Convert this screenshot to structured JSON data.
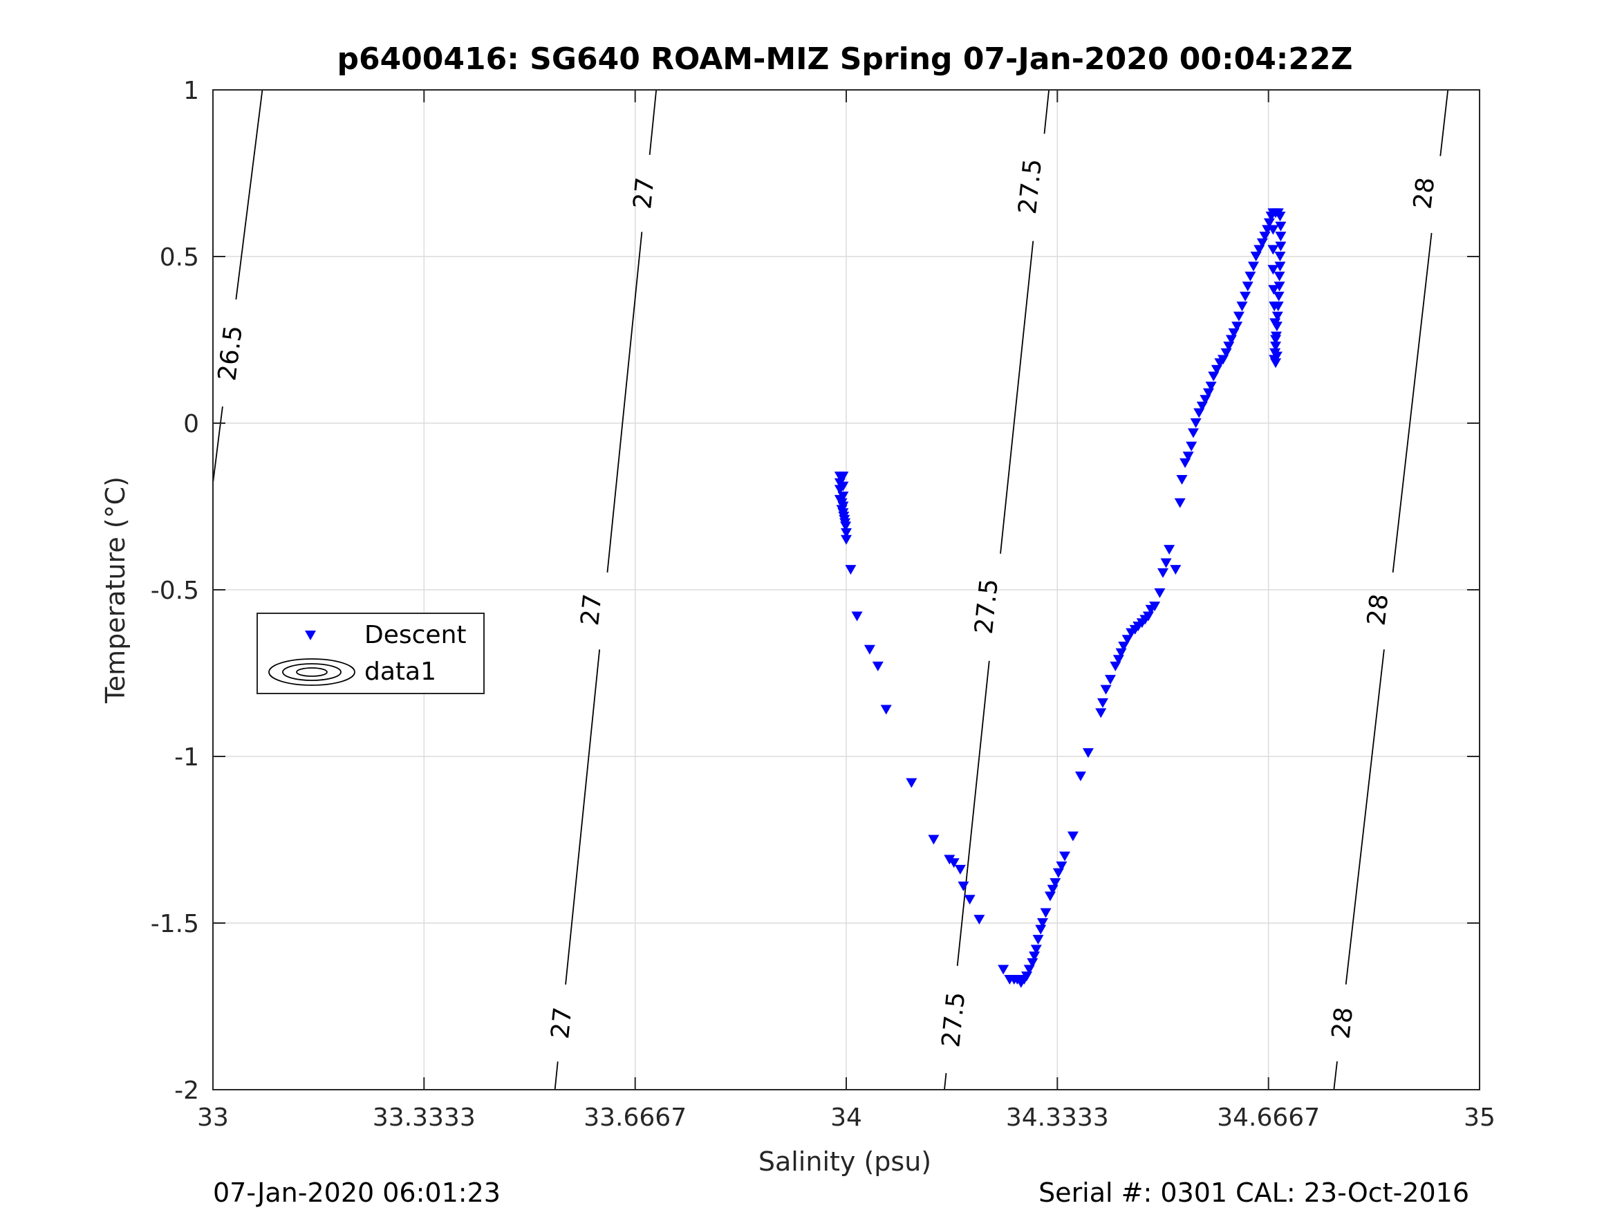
{
  "chart_data": {
    "type": "scatter",
    "title": "p6400416: SG640 ROAM-MIZ Spring 07-Jan-2020 00:04:22Z",
    "xlabel": "Salinity (psu)",
    "ylabel": "Temperature (°C)",
    "xlim": [
      33,
      35
    ],
    "ylim": [
      -2,
      1
    ],
    "x_ticks": [
      33,
      33.3333,
      33.6667,
      34,
      34.3333,
      34.6667,
      35
    ],
    "x_tick_labels": [
      "33",
      "33.3333",
      "33.6667",
      "34",
      "34.3333",
      "34.6667",
      "35"
    ],
    "y_ticks": [
      -2,
      -1.5,
      -1,
      -0.5,
      0,
      0.5,
      1
    ],
    "y_tick_labels": [
      "-2",
      "-1.5",
      "-1",
      "-0.5",
      "0",
      "0.5",
      "1"
    ],
    "grid": true,
    "legend": {
      "placement": "middle-left",
      "entries": [
        "Descent",
        "data1"
      ]
    },
    "series": [
      {
        "name": "Descent",
        "color": "#0000ff",
        "marker": "triangle-down",
        "points": [
          [
            33.99,
            -0.16
          ],
          [
            33.995,
            -0.16
          ],
          [
            33.99,
            -0.18
          ],
          [
            33.995,
            -0.19
          ],
          [
            33.99,
            -0.2
          ],
          [
            33.995,
            -0.22
          ],
          [
            33.99,
            -0.23
          ],
          [
            33.993,
            -0.24
          ],
          [
            33.995,
            -0.25
          ],
          [
            33.993,
            -0.26
          ],
          [
            33.995,
            -0.27
          ],
          [
            33.996,
            -0.28
          ],
          [
            33.997,
            -0.29
          ],
          [
            33.998,
            -0.3
          ],
          [
            33.999,
            -0.31
          ],
          [
            34.0,
            -0.33
          ],
          [
            34.0,
            -0.35
          ],
          [
            34.007,
            -0.44
          ],
          [
            34.017,
            -0.58
          ],
          [
            34.037,
            -0.68
          ],
          [
            34.05,
            -0.73
          ],
          [
            34.063,
            -0.86
          ],
          [
            34.103,
            -1.08
          ],
          [
            34.138,
            -1.25
          ],
          [
            34.163,
            -1.31
          ],
          [
            34.17,
            -1.32
          ],
          [
            34.18,
            -1.34
          ],
          [
            34.185,
            -1.39
          ],
          [
            34.195,
            -1.43
          ],
          [
            34.21,
            -1.49
          ],
          [
            34.248,
            -1.64
          ],
          [
            34.258,
            -1.67
          ],
          [
            34.265,
            -1.67
          ],
          [
            34.27,
            -1.67
          ],
          [
            34.276,
            -1.68
          ],
          [
            34.281,
            -1.67
          ],
          [
            34.285,
            -1.66
          ],
          [
            34.289,
            -1.64
          ],
          [
            34.294,
            -1.62
          ],
          [
            34.297,
            -1.6
          ],
          [
            34.3,
            -1.58
          ],
          [
            34.303,
            -1.55
          ],
          [
            34.307,
            -1.52
          ],
          [
            34.31,
            -1.5
          ],
          [
            34.315,
            -1.47
          ],
          [
            34.322,
            -1.42
          ],
          [
            34.326,
            -1.4
          ],
          [
            34.33,
            -1.38
          ],
          [
            34.335,
            -1.35
          ],
          [
            34.34,
            -1.33
          ],
          [
            34.345,
            -1.3
          ],
          [
            34.358,
            -1.24
          ],
          [
            34.37,
            -1.06
          ],
          [
            34.382,
            -0.99
          ],
          [
            34.402,
            -0.87
          ],
          [
            34.405,
            -0.84
          ],
          [
            34.41,
            -0.8
          ],
          [
            34.417,
            -0.77
          ],
          [
            34.425,
            -0.73
          ],
          [
            34.43,
            -0.71
          ],
          [
            34.434,
            -0.69
          ],
          [
            34.438,
            -0.67
          ],
          [
            34.444,
            -0.65
          ],
          [
            34.45,
            -0.63
          ],
          [
            34.456,
            -0.62
          ],
          [
            34.461,
            -0.61
          ],
          [
            34.467,
            -0.6
          ],
          [
            34.472,
            -0.59
          ],
          [
            34.477,
            -0.58
          ],
          [
            34.481,
            -0.56
          ],
          [
            34.487,
            -0.55
          ],
          [
            34.495,
            -0.51
          ],
          [
            34.5,
            -0.45
          ],
          [
            34.505,
            -0.42
          ],
          [
            34.51,
            -0.38
          ],
          [
            34.52,
            -0.44
          ],
          [
            34.527,
            -0.24
          ],
          [
            34.53,
            -0.17
          ],
          [
            34.535,
            -0.12
          ],
          [
            34.54,
            -0.1
          ],
          [
            34.545,
            -0.07
          ],
          [
            34.548,
            -0.03
          ],
          [
            34.552,
            0.0
          ],
          [
            34.557,
            0.03
          ],
          [
            34.562,
            0.05
          ],
          [
            34.567,
            0.07
          ],
          [
            34.572,
            0.09
          ],
          [
            34.576,
            0.11
          ],
          [
            34.58,
            0.14
          ],
          [
            34.585,
            0.16
          ],
          [
            34.59,
            0.18
          ],
          [
            34.595,
            0.19
          ],
          [
            34.6,
            0.21
          ],
          [
            34.604,
            0.23
          ],
          [
            34.608,
            0.25
          ],
          [
            34.612,
            0.27
          ],
          [
            34.617,
            0.29
          ],
          [
            34.62,
            0.32
          ],
          [
            34.625,
            0.35
          ],
          [
            34.63,
            0.38
          ],
          [
            34.634,
            0.41
          ],
          [
            34.638,
            0.44
          ],
          [
            34.643,
            0.47
          ],
          [
            34.647,
            0.5
          ],
          [
            34.652,
            0.52
          ],
          [
            34.657,
            0.54
          ],
          [
            34.661,
            0.56
          ],
          [
            34.665,
            0.58
          ],
          [
            34.668,
            0.6
          ],
          [
            34.671,
            0.62
          ],
          [
            34.674,
            0.63
          ],
          [
            34.678,
            0.63
          ],
          [
            34.682,
            0.63
          ],
          [
            34.685,
            0.62
          ],
          [
            34.686,
            0.59
          ],
          [
            34.686,
            0.56
          ],
          [
            34.686,
            0.53
          ],
          [
            34.685,
            0.5
          ],
          [
            34.685,
            0.47
          ],
          [
            34.684,
            0.44
          ],
          [
            34.684,
            0.41
          ],
          [
            34.683,
            0.38
          ],
          [
            34.682,
            0.35
          ],
          [
            34.681,
            0.32
          ],
          [
            34.68,
            0.29
          ],
          [
            34.679,
            0.26
          ],
          [
            34.678,
            0.23
          ],
          [
            34.677,
            0.21
          ],
          [
            34.676,
            0.19
          ],
          [
            34.678,
            0.18
          ],
          [
            34.68,
            0.2
          ],
          [
            34.678,
            0.25
          ],
          [
            34.677,
            0.3
          ],
          [
            34.676,
            0.35
          ],
          [
            34.675,
            0.4
          ],
          [
            34.674,
            0.46
          ],
          [
            34.674,
            0.52
          ],
          [
            34.674,
            0.58
          ]
        ]
      }
    ],
    "contours": [
      {
        "name": "data1",
        "color": "#000000",
        "levels": [
          {
            "value": 26.5,
            "line": [
              [
                33.0,
                -0.18
              ],
              [
                33.078,
                1.0
              ]
            ],
            "labels": [
              {
                "text": "26.5",
                "at": [
                  33.028,
                  0.21
                ]
              }
            ]
          },
          {
            "value": 27,
            "line": [
              [
                33.54,
                -2.0
              ],
              [
                33.7,
                1.0
              ]
            ],
            "labels": [
              {
                "text": "27",
                "at": [
                  33.551,
                  -1.8
                ]
              },
              {
                "text": "27",
                "at": [
                  33.598,
                  -0.56
                ]
              },
              {
                "text": "27",
                "at": [
                  33.681,
                  0.69
                ]
              }
            ]
          },
          {
            "value": 27.5,
            "line": [
              [
                34.155,
                -2.0
              ],
              [
                34.32,
                1.0
              ]
            ],
            "labels": [
              {
                "text": "27.5",
                "at": [
                  34.17,
                  -1.79
                ]
              },
              {
                "text": "27.5",
                "at": [
                  34.222,
                  -0.55
                ]
              },
              {
                "text": "27.5",
                "at": [
                  34.291,
                  0.71
                ]
              }
            ]
          },
          {
            "value": 28,
            "line": [
              [
                34.77,
                -2.0
              ],
              [
                34.95,
                1.0
              ]
            ],
            "labels": [
              {
                "text": "28",
                "at": [
                  34.784,
                  -1.8
                ]
              },
              {
                "text": "28",
                "at": [
                  34.84,
                  -0.56
                ]
              },
              {
                "text": "28",
                "at": [
                  34.913,
                  0.69
                ]
              }
            ]
          }
        ]
      }
    ]
  },
  "footer": {
    "left": "07-Jan-2020 06:01:23",
    "right": "Serial #: 0301  CAL: 23-Oct-2016"
  }
}
